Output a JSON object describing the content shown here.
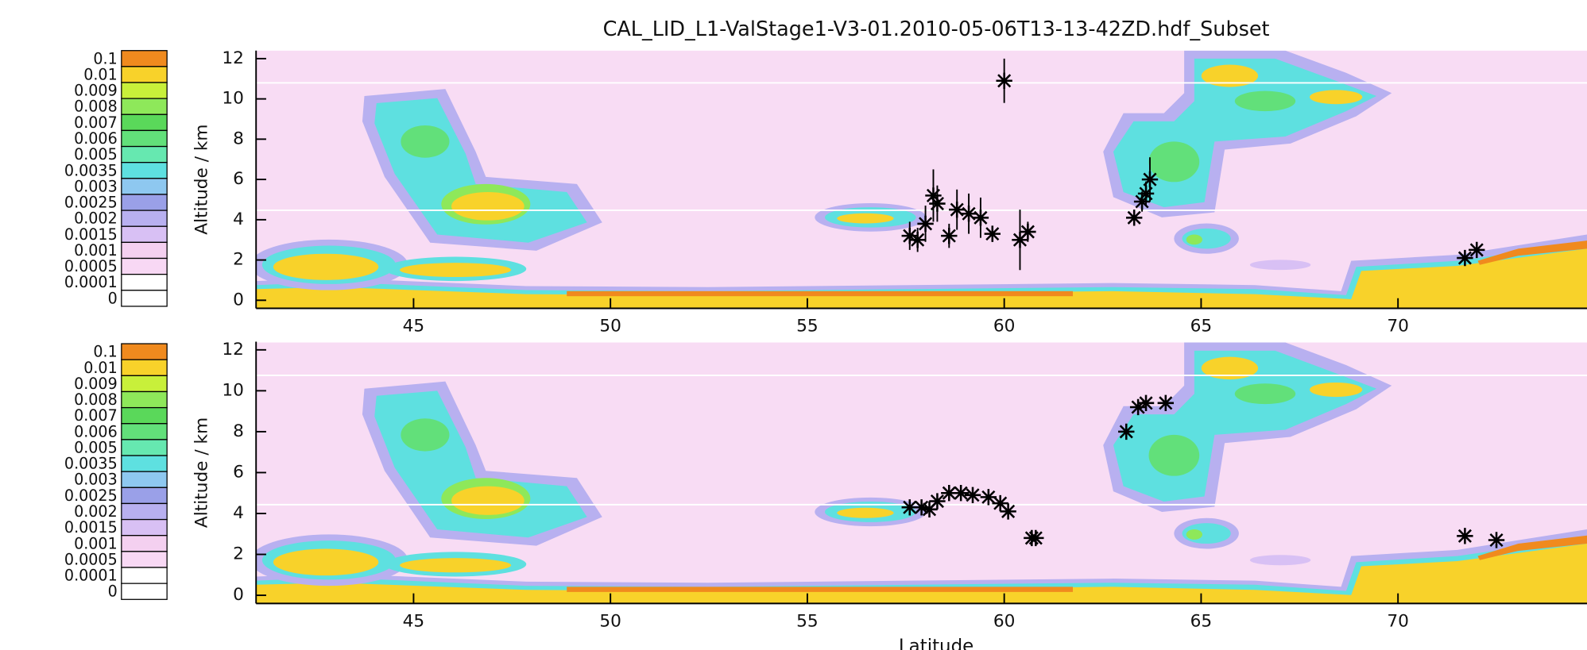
{
  "chart_data": [
    {
      "type": "scatter",
      "title": "CAL_LID_L1-ValStage1-V3-01.2010-05-06T13-13-42ZD.hdf_Subset",
      "ylabel": "Altitude / km",
      "color": "#000000",
      "marker": "asterisk",
      "x": [
        57.6,
        57.8,
        58.0,
        58.2,
        58.3,
        58.6,
        58.8,
        59.1,
        59.4,
        59.7,
        60.0,
        60.4,
        60.6,
        63.3,
        63.5,
        63.6,
        63.7,
        71.7,
        72.0
      ],
      "y": [
        3.2,
        3.0,
        3.8,
        5.2,
        4.8,
        3.2,
        4.5,
        4.3,
        4.1,
        3.3,
        10.9,
        3.0,
        3.4,
        4.1,
        4.9,
        5.3,
        6.0,
        2.1,
        2.5
      ],
      "errors": [
        0.7,
        0.6,
        0.9,
        1.3,
        0.9,
        0.6,
        1.0,
        1.0,
        1.0,
        0.4,
        1.1,
        1.5,
        0.5,
        0.3,
        0.5,
        0.6,
        1.1,
        0.3,
        0.3
      ],
      "xlim": [
        41,
        74.8
      ],
      "ylim": [
        -0.4,
        12.4
      ],
      "xticks": [
        45,
        50,
        55,
        60,
        65,
        70
      ],
      "yticks": [
        0,
        2,
        4,
        6,
        8,
        10,
        12
      ],
      "colorbar": {
        "levels": [
          0.1,
          0.01,
          0.009,
          0.008,
          0.007,
          0.006,
          0.005,
          0.0035,
          0.003,
          0.0025,
          0.002,
          0.0015,
          0.001,
          0.0005,
          0.0001,
          0
        ],
        "colors": [
          "#f08a1e",
          "#f8d22a",
          "#c8f03a",
          "#8ee85a",
          "#5ad85a",
          "#62e07a",
          "#66e8b0",
          "#5ee0e0",
          "#8ec8f0",
          "#9aa0e8",
          "#b8b0f0",
          "#d8c0f4",
          "#f4d0f0",
          "#f8d8f4",
          "#ffffff",
          "#ffffff"
        ]
      }
    },
    {
      "type": "scatter",
      "ylabel": "Altitude / km",
      "xlabel": "Latitude",
      "color": "#000000",
      "marker": "asterisk",
      "x": [
        57.6,
        57.9,
        58.1,
        58.3,
        58.6,
        58.9,
        59.2,
        59.6,
        59.9,
        60.1,
        60.7,
        60.8,
        63.1,
        63.4,
        63.6,
        64.1,
        71.7,
        72.5
      ],
      "y": [
        4.3,
        4.3,
        4.2,
        4.6,
        5.0,
        5.0,
        4.9,
        4.8,
        4.5,
        4.1,
        2.8,
        2.8,
        8.0,
        9.2,
        9.4,
        9.4,
        2.9,
        2.7
      ],
      "xlim": [
        41,
        74.8
      ],
      "ylim": [
        -0.4,
        12.4
      ],
      "xticks": [
        45,
        50,
        55,
        60,
        65,
        70
      ],
      "yticks": [
        0,
        2,
        4,
        6,
        8,
        10,
        12
      ],
      "colorbar": {
        "levels": [
          0.1,
          0.01,
          0.009,
          0.008,
          0.007,
          0.006,
          0.005,
          0.0035,
          0.003,
          0.0025,
          0.002,
          0.0015,
          0.001,
          0.0005,
          0.0001,
          0
        ],
        "colors": [
          "#f08a1e",
          "#f8d22a",
          "#c8f03a",
          "#8ee85a",
          "#5ad85a",
          "#62e07a",
          "#66e8b0",
          "#5ee0e0",
          "#8ec8f0",
          "#9aa0e8",
          "#b8b0f0",
          "#d8c0f4",
          "#f4d0f0",
          "#f8d8f4",
          "#ffffff",
          "#ffffff"
        ]
      }
    }
  ]
}
